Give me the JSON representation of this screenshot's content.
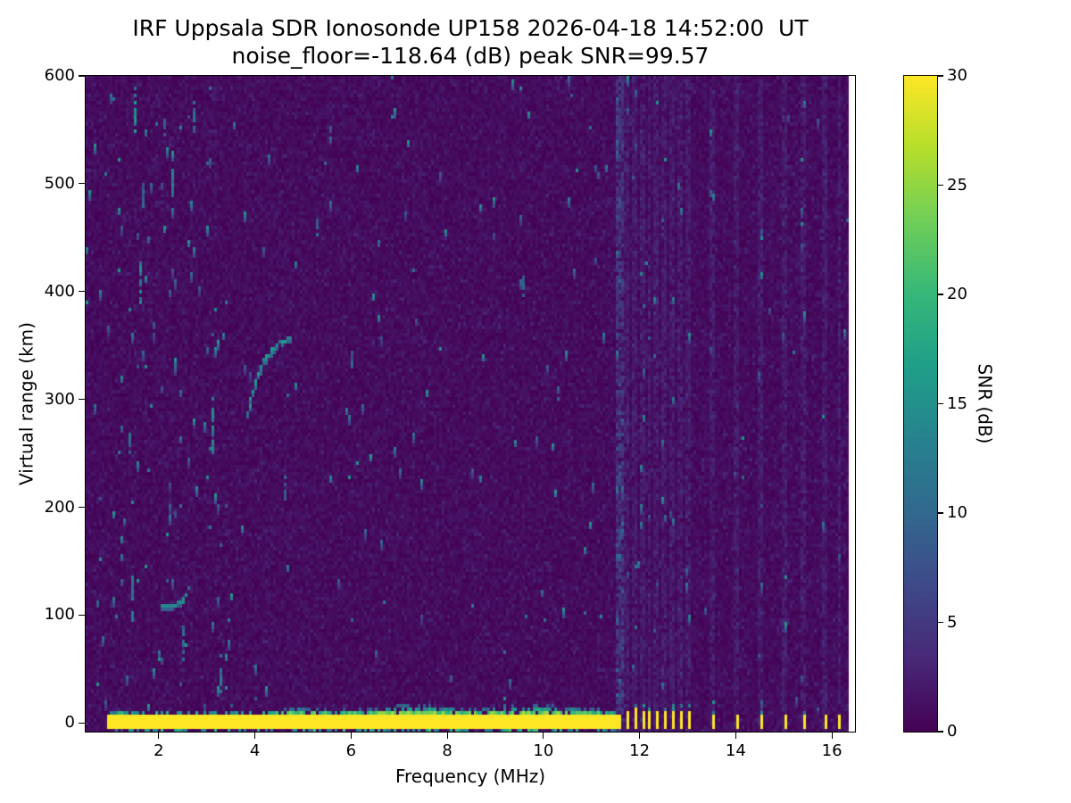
{
  "figure": {
    "title_line1": "IRF Uppsala SDR Ionosonde UP158 2026-04-18 14:52:00  UT",
    "title_line2": "noise_floor=-118.64 (dB) peak SNR=99.57"
  },
  "readouts": {
    "station": "UP158",
    "timestamp_ut": "2026-04-18 14:52:00",
    "noise_floor_db": -118.64,
    "peak_snr_db": 99.57
  },
  "chart_data": {
    "type": "heatmap",
    "title": "IRF Uppsala SDR Ionosonde UP158 2026-04-18 14:52:00  UT\nnoise_floor=-118.64 (dB) peak SNR=99.57",
    "xlabel": "Frequency (MHz)",
    "ylabel": "Virtual range (km)",
    "colorbar_label": "SNR (dB)",
    "x_range_mhz": [
      0.48,
      16.48
    ],
    "y_range_km": [
      -8,
      600
    ],
    "color_range_db": [
      0,
      30
    ],
    "xticks": [
      2,
      4,
      6,
      8,
      10,
      12,
      14,
      16
    ],
    "yticks": [
      0,
      100,
      200,
      300,
      400,
      500,
      600
    ],
    "colorbar_ticks": [
      0,
      5,
      10,
      15,
      20,
      25,
      30
    ],
    "colormap": "viridis",
    "colormap_stops": [
      "#440154",
      "#482878",
      "#3e4989",
      "#31688e",
      "#26828e",
      "#1f9e89",
      "#35b779",
      "#6ece58",
      "#b5de2b",
      "#fde725"
    ],
    "data_extent_mhz": [
      0.48,
      16.35
    ],
    "grid": false,
    "features": {
      "background_noise_db": [
        0,
        3
      ],
      "sweep_ground_band": {
        "freq_mhz": [
          0.95,
          11.62
        ],
        "virtual_range_km": [
          -6,
          7
        ],
        "snr_db": 30
      },
      "ground_halo_bump_centers_mhz": [
        4.9,
        7.2,
        9.9
      ],
      "interference_column": {
        "freq_mhz": 11.58,
        "half_width_mhz": 0.1,
        "snr_db": [
          4,
          14
        ]
      },
      "pulse_marks_mhz": [
        11.75,
        11.9,
        12.05,
        12.2,
        12.36,
        12.52,
        12.68,
        12.85,
        13.02,
        13.52,
        14.02,
        14.52,
        15.0,
        15.42,
        15.85,
        16.15
      ],
      "pulse_marks_range_km": [
        -6,
        12
      ],
      "echo_trace": {
        "snr_db": 14,
        "points_mhz_km": [
          [
            3.86,
            286
          ],
          [
            3.92,
            300
          ],
          [
            4.0,
            315
          ],
          [
            4.1,
            328
          ],
          [
            4.22,
            338
          ],
          [
            4.38,
            347
          ],
          [
            4.56,
            353
          ],
          [
            4.74,
            357
          ]
        ]
      },
      "sporadic_e_trace": {
        "snr_db": 13,
        "points_mhz_km": [
          [
            2.08,
            107
          ],
          [
            2.2,
            109
          ],
          [
            2.35,
            110
          ],
          [
            2.5,
            112
          ],
          [
            2.58,
            117
          ],
          [
            2.63,
            126
          ]
        ]
      },
      "noise_streaks_mhz_km1_km2_db": [
        [
          1.52,
          548,
          588,
          15
        ],
        [
          1.62,
          390,
          425,
          13
        ],
        [
          1.45,
          95,
          140,
          12
        ],
        [
          2.28,
          488,
          512,
          13
        ],
        [
          2.1,
          545,
          560,
          11
        ],
        [
          3.12,
          248,
          305,
          14
        ],
        [
          2.75,
          558,
          574,
          11
        ],
        [
          3.3,
          30,
          62,
          12
        ],
        [
          4.62,
          208,
          228,
          11
        ],
        [
          5.3,
          452,
          468,
          10
        ],
        [
          1.38,
          250,
          268,
          11
        ],
        [
          2.5,
          60,
          90,
          11
        ],
        [
          1.7,
          480,
          500,
          10
        ],
        [
          6.0,
          330,
          345,
          9
        ],
        [
          9.6,
          398,
          412,
          10
        ],
        [
          10.3,
          300,
          312,
          9
        ],
        [
          5.55,
          540,
          552,
          9
        ],
        [
          1.9,
          660,
          0,
          0
        ]
      ],
      "speckle_probability": {
        "below_3p6_mhz": 0.011,
        "mid_band": 0.0035,
        "above_11p7_mhz": 0.0015
      }
    }
  }
}
